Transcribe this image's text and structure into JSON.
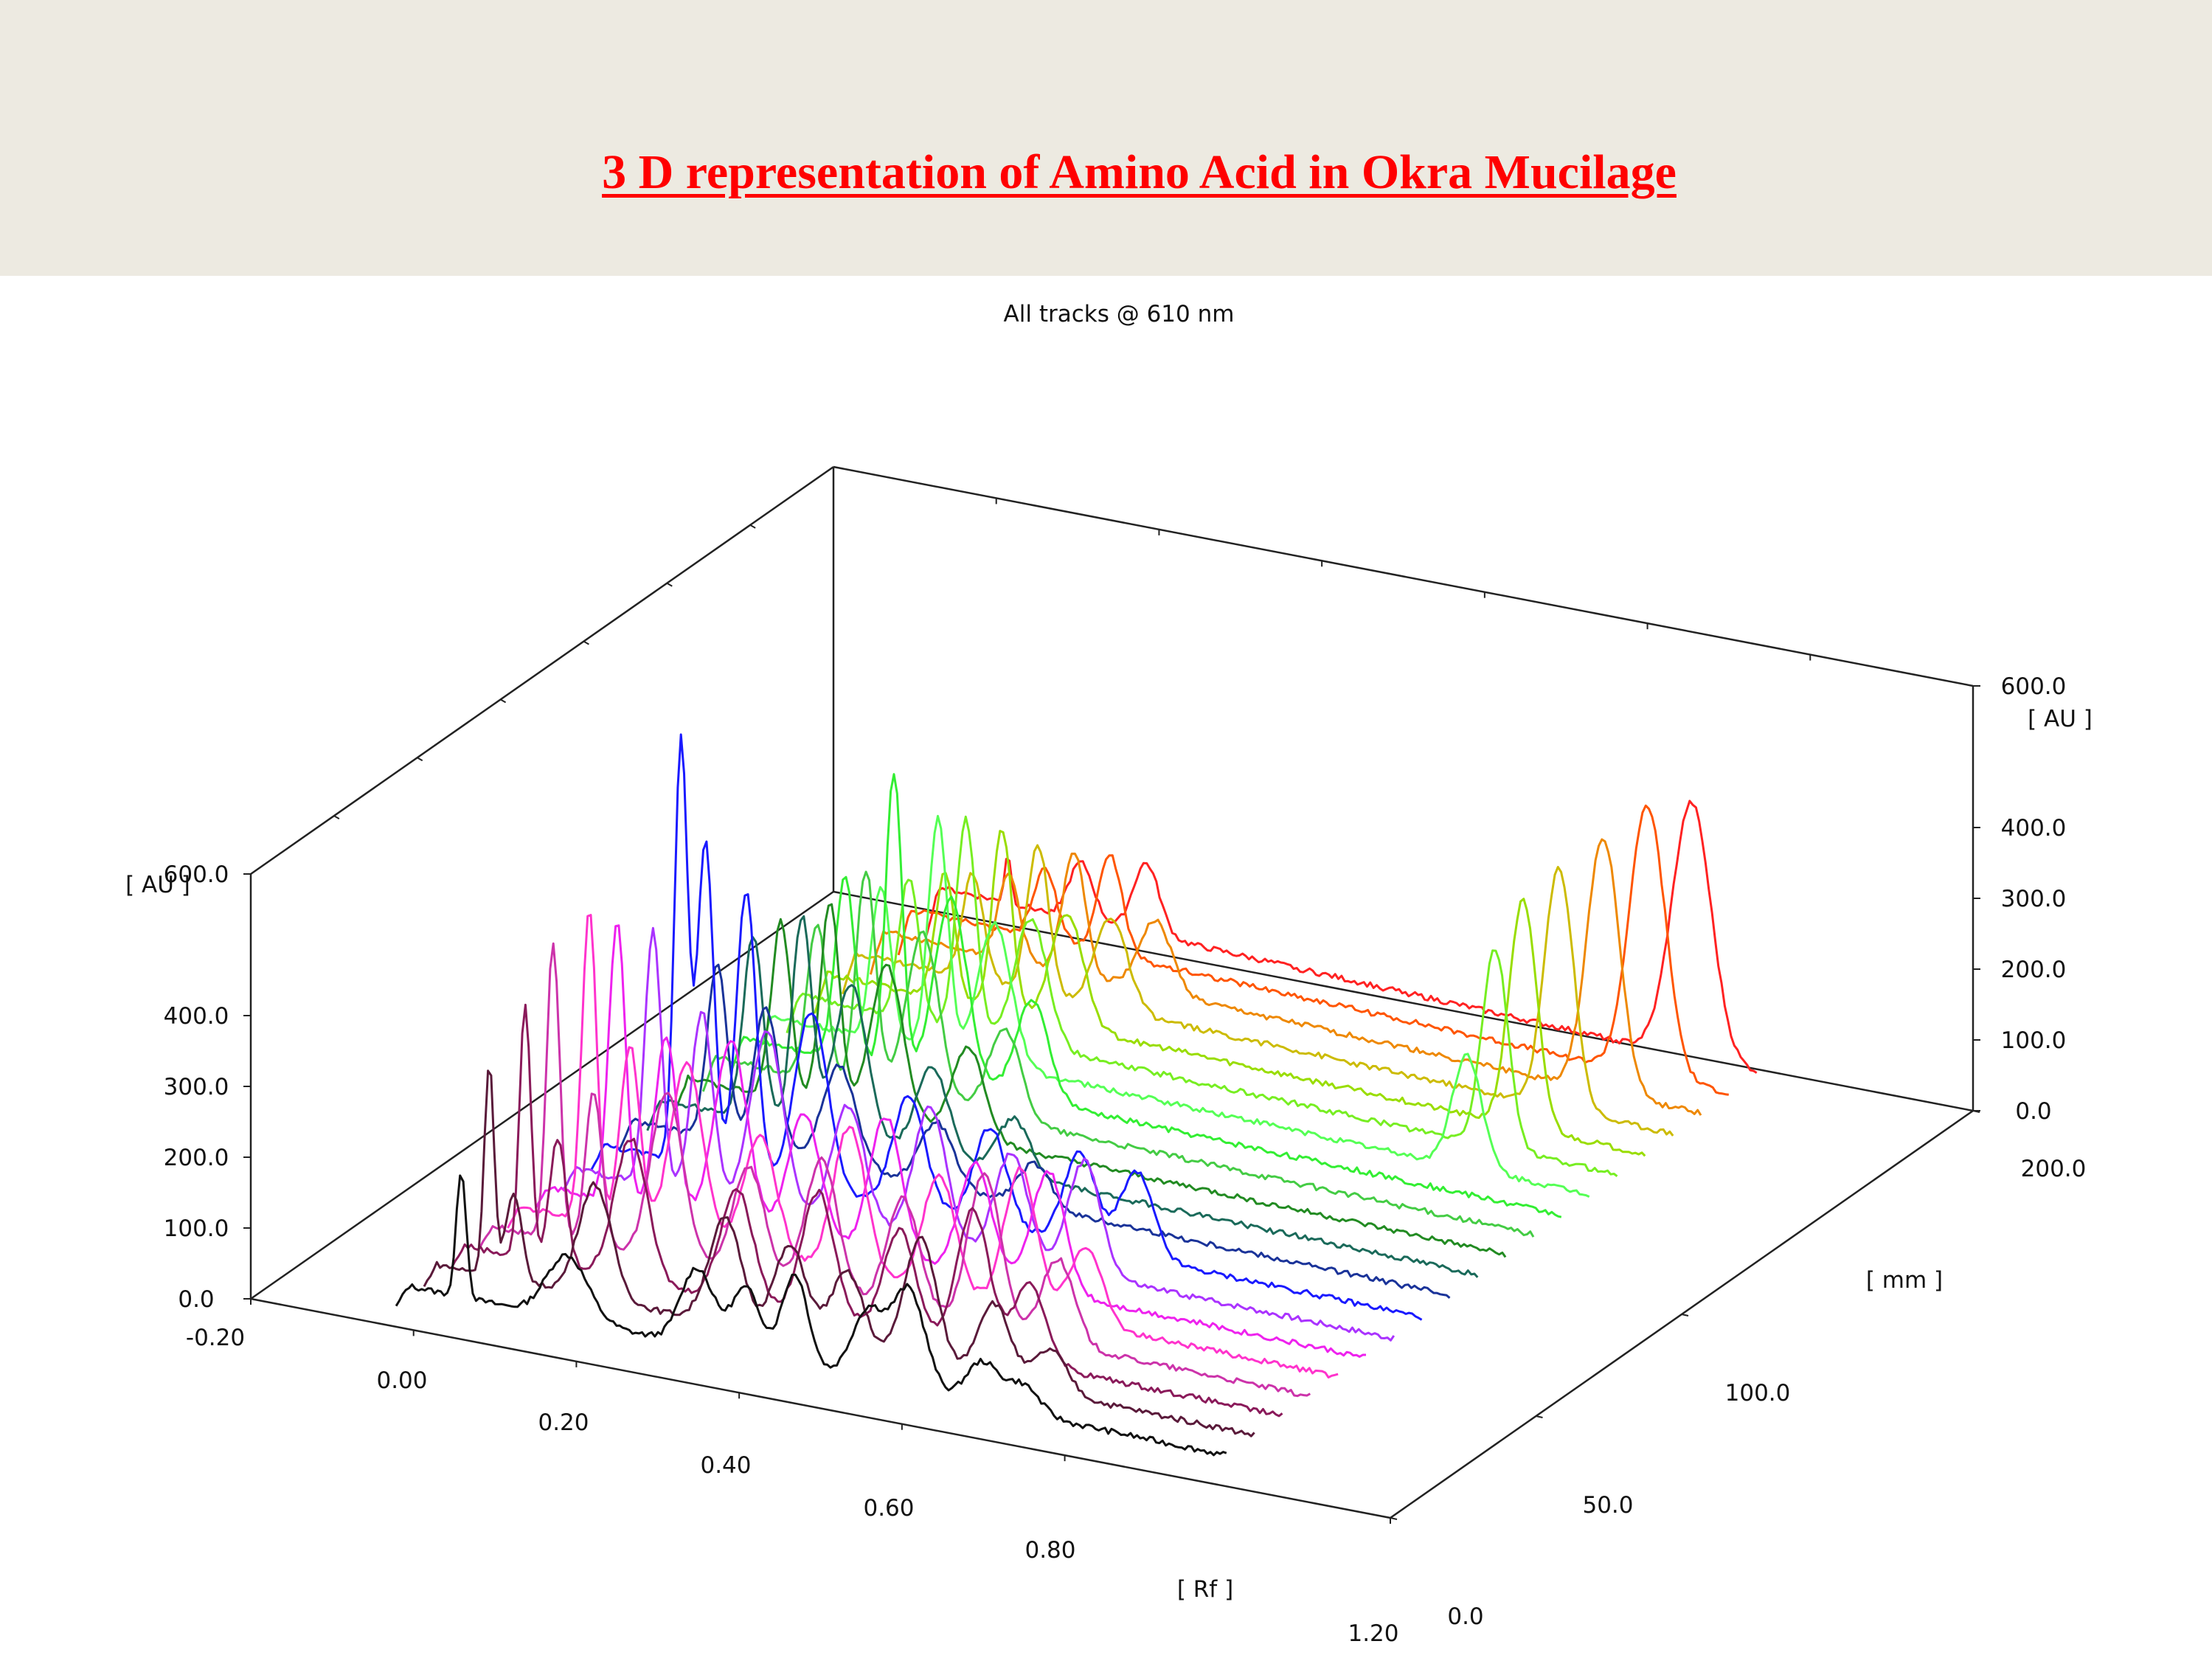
{
  "slide": {
    "title": "3 D representation of Amino Acid in Okra Mucilage"
  },
  "chart_data": {
    "type": "line",
    "title": "All tracks @ 610 nm",
    "xlabel": "[ Rf ]",
    "ylabel": "[ AU ]",
    "zlabel": "[ mm ]",
    "x_ticks": [
      "-0.20",
      "0.00",
      "0.20",
      "0.40",
      "0.60",
      "0.80",
      "1.20"
    ],
    "y_ticks_left": [
      "0.0",
      "100.0",
      "200.0",
      "300.0",
      "400.0",
      "600.0"
    ],
    "y_ticks_right": [
      "0.0",
      "100.0",
      "200.0",
      "300.0",
      "400.0",
      "600.0"
    ],
    "z_ticks": [
      "0.0",
      "50.0",
      "100.0",
      "200.0"
    ],
    "xlim": [
      -0.2,
      1.2
    ],
    "ylim": [
      0,
      600
    ],
    "zlim": [
      0,
      200
    ],
    "series": [
      {
        "color": "#111111",
        "baseline": 32,
        "peaks": [
          [
            0.03,
            180,
            0.006
          ],
          [
            0.16,
            90,
            0.025
          ],
          [
            0.32,
            110,
            0.02
          ],
          [
            0.38,
            95,
            0.018
          ],
          [
            0.44,
            130,
            0.016
          ],
          [
            0.53,
            100,
            0.02
          ],
          [
            0.58,
            140,
            0.02
          ],
          [
            0.67,
            60,
            0.02
          ],
          [
            0.72,
            40,
            0.02
          ]
        ]
      },
      {
        "color": "#5a1a3a",
        "baseline": 35,
        "peaks": [
          [
            0.03,
            300,
            0.006
          ],
          [
            0.06,
            120,
            0.01
          ],
          [
            0.16,
            160,
            0.02
          ],
          [
            0.32,
            150,
            0.02
          ],
          [
            0.4,
            130,
            0.02
          ],
          [
            0.47,
            110,
            0.02
          ],
          [
            0.56,
            180,
            0.02
          ],
          [
            0.65,
            110,
            0.02
          ],
          [
            0.72,
            60,
            0.02
          ]
        ]
      },
      {
        "color": "#8a1a5a",
        "baseline": 34,
        "peaks": [
          [
            0.04,
            360,
            0.007
          ],
          [
            0.08,
            180,
            0.01
          ],
          [
            0.17,
            200,
            0.02
          ],
          [
            0.3,
            160,
            0.02
          ],
          [
            0.4,
            180,
            0.02
          ],
          [
            0.5,
            150,
            0.02
          ],
          [
            0.59,
            200,
            0.02
          ],
          [
            0.66,
            110,
            0.02
          ]
        ]
      },
      {
        "color": "#cc33aa",
        "baseline": 34,
        "peaks": [
          [
            0.04,
            420,
            0.008
          ],
          [
            0.09,
            220,
            0.01
          ],
          [
            0.18,
            240,
            0.02
          ],
          [
            0.28,
            160,
            0.02
          ],
          [
            0.37,
            190,
            0.02
          ],
          [
            0.47,
            160,
            0.02
          ],
          [
            0.57,
            220,
            0.02
          ],
          [
            0.66,
            120,
            0.02
          ]
        ]
      },
      {
        "color": "#ff33cc",
        "baseline": 34,
        "peaks": [
          [
            0.05,
            440,
            0.009
          ],
          [
            0.1,
            260,
            0.012
          ],
          [
            0.17,
            250,
            0.02
          ],
          [
            0.26,
            170,
            0.02
          ],
          [
            0.37,
            210,
            0.02
          ],
          [
            0.48,
            170,
            0.02
          ],
          [
            0.58,
            200,
            0.02
          ],
          [
            0.66,
            110,
            0.02
          ]
        ]
      },
      {
        "color": "#ee22ee",
        "baseline": 33,
        "peaks": [
          [
            0.05,
            400,
            0.01
          ],
          [
            0.11,
            250,
            0.013
          ],
          [
            0.19,
            260,
            0.02
          ],
          [
            0.28,
            180,
            0.02
          ],
          [
            0.38,
            200,
            0.02
          ],
          [
            0.49,
            160,
            0.02
          ],
          [
            0.58,
            170,
            0.02
          ]
        ]
      },
      {
        "color": "#aa33ff",
        "baseline": 32,
        "peaks": [
          [
            0.06,
            360,
            0.01
          ],
          [
            0.12,
            260,
            0.013
          ],
          [
            0.2,
            250,
            0.02
          ],
          [
            0.3,
            170,
            0.02
          ],
          [
            0.4,
            190,
            0.02
          ],
          [
            0.5,
            150,
            0.02
          ],
          [
            0.59,
            160,
            0.02
          ]
        ]
      },
      {
        "color": "#1a1aff",
        "baseline": 38,
        "peaks": [
          [
            0.06,
            600,
            0.008
          ],
          [
            0.09,
            460,
            0.01
          ],
          [
            0.14,
            400,
            0.012
          ],
          [
            0.22,
            250,
            0.02
          ],
          [
            0.34,
            160,
            0.02
          ],
          [
            0.44,
            140,
            0.02
          ],
          [
            0.55,
            130,
            0.02
          ],
          [
            0.62,
            120,
            0.02
          ]
        ]
      },
      {
        "color": "#1a3399",
        "baseline": 45,
        "peaks": [
          [
            0.07,
            250,
            0.012
          ],
          [
            0.13,
            200,
            0.015
          ],
          [
            0.22,
            140,
            0.02
          ],
          [
            0.34,
            90,
            0.02
          ],
          [
            0.46,
            60,
            0.02
          ]
        ]
      },
      {
        "color": "#1a6a5a",
        "baseline": 48,
        "peaks": [
          [
            0.08,
            260,
            0.012
          ],
          [
            0.14,
            300,
            0.012
          ],
          [
            0.2,
            220,
            0.02
          ],
          [
            0.3,
            130,
            0.02
          ],
          [
            0.4,
            80,
            0.02
          ]
        ]
      },
      {
        "color": "#228b22",
        "baseline": 50,
        "peaks": [
          [
            0.08,
            250,
            0.012
          ],
          [
            0.14,
            290,
            0.012
          ],
          [
            0.21,
            220,
            0.02
          ],
          [
            0.31,
            130,
            0.02
          ]
        ]
      },
      {
        "color": "#44cc44",
        "baseline": 52,
        "peaks": [
          [
            0.09,
            220,
            0.012
          ],
          [
            0.15,
            310,
            0.012
          ],
          [
            0.22,
            240,
            0.02
          ],
          [
            0.32,
            130,
            0.02
          ]
        ]
      },
      {
        "color": "#33ee33",
        "baseline": 53,
        "peaks": [
          [
            0.09,
            260,
            0.012
          ],
          [
            0.15,
            420,
            0.01
          ],
          [
            0.22,
            260,
            0.02
          ],
          [
            0.32,
            140,
            0.02
          ]
        ]
      },
      {
        "color": "#55ff55",
        "baseline": 55,
        "peaks": [
          [
            0.1,
            220,
            0.012
          ],
          [
            0.17,
            330,
            0.012
          ],
          [
            0.24,
            200,
            0.02
          ],
          [
            0.82,
            160,
            0.018
          ]
        ]
      },
      {
        "color": "#77ee22",
        "baseline": 58,
        "peaks": [
          [
            0.1,
            200,
            0.012
          ],
          [
            0.17,
            300,
            0.012
          ],
          [
            0.25,
            180,
            0.02
          ],
          [
            0.82,
            280,
            0.016
          ]
        ]
      },
      {
        "color": "#99dd00",
        "baseline": 60,
        "peaks": [
          [
            0.11,
            180,
            0.012
          ],
          [
            0.18,
            260,
            0.012
          ],
          [
            0.26,
            160,
            0.02
          ],
          [
            0.82,
            320,
            0.017
          ]
        ]
      },
      {
        "color": "#ccbb00",
        "baseline": 62,
        "peaks": [
          [
            0.11,
            150,
            0.013
          ],
          [
            0.19,
            210,
            0.013
          ],
          [
            0.28,
            130,
            0.02
          ],
          [
            0.83,
            340,
            0.018
          ]
        ]
      },
      {
        "color": "#ee8800",
        "baseline": 65,
        "peaks": [
          [
            0.12,
            120,
            0.013
          ],
          [
            0.2,
            170,
            0.014
          ],
          [
            0.3,
            100,
            0.02
          ],
          [
            0.85,
            360,
            0.02
          ]
        ]
      },
      {
        "color": "#ff5500",
        "baseline": 68,
        "peaks": [
          [
            0.13,
            100,
            0.014
          ],
          [
            0.21,
            140,
            0.015
          ],
          [
            0.87,
            380,
            0.022
          ]
        ]
      },
      {
        "color": "#ff2222",
        "baseline": 72,
        "peaks": [
          [
            0.05,
            70,
            0.004
          ],
          [
            0.14,
            80,
            0.015
          ],
          [
            0.22,
            100,
            0.016
          ],
          [
            0.89,
            360,
            0.024
          ]
        ]
      }
    ]
  }
}
